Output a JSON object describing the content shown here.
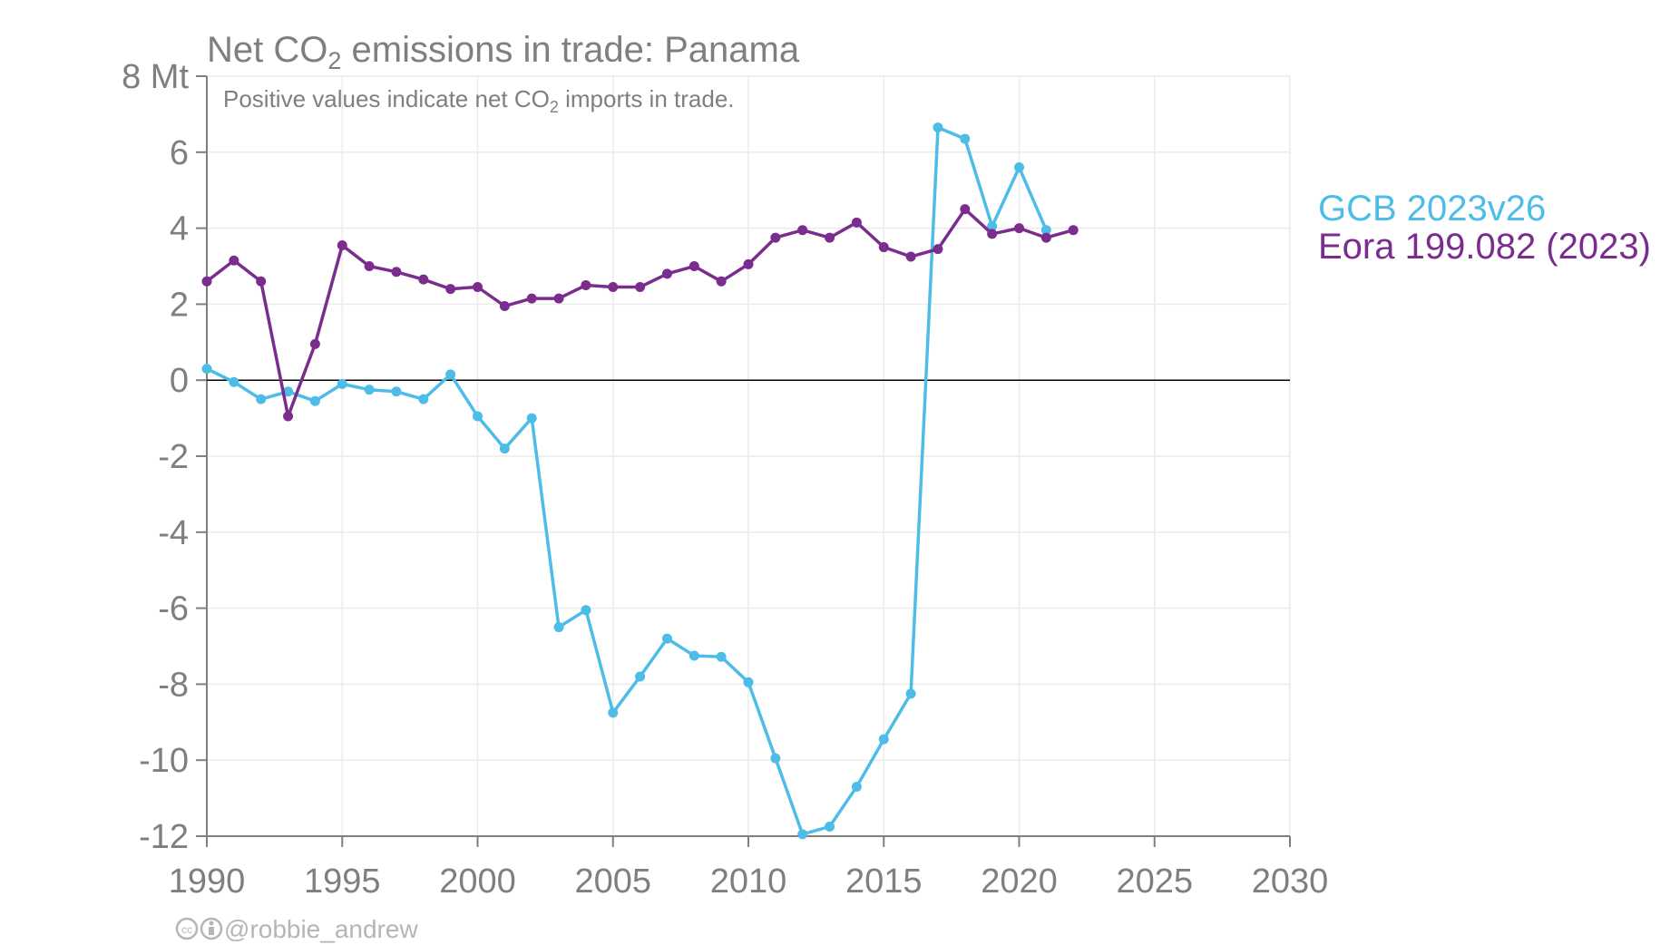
{
  "title_pre": "Net CO",
  "title_sub": "2",
  "title_post": " emissions in trade: Panama",
  "subtitle_pre": "Positive values indicate net CO",
  "subtitle_sub": "2",
  "subtitle_post": " imports in trade.",
  "credit": "@robbie_andrew",
  "chart_data": {
    "type": "line",
    "xlim": [
      1990,
      2030
    ],
    "ylim": [
      -12,
      8
    ],
    "x_ticks": [
      1990,
      1995,
      2000,
      2005,
      2010,
      2015,
      2020,
      2025,
      2030
    ],
    "x_tick_labels": [
      "1990",
      "1995",
      "2000",
      "2005",
      "2010",
      "2015",
      "2020",
      "2025",
      "2030"
    ],
    "y_ticks": [
      8,
      6,
      4,
      2,
      0,
      -2,
      -4,
      -6,
      -8,
      -10,
      -12
    ],
    "y_tick_labels": [
      "8 Mt",
      "6",
      "4",
      "2",
      "0",
      "-2",
      "-4",
      "-6",
      "-8",
      "-10",
      "-12"
    ],
    "grid": true,
    "legend_placement": "right",
    "series": [
      {
        "name": "GCB 2023v26",
        "color": "#4dbde8",
        "x": [
          1990,
          1991,
          1992,
          1993,
          1994,
          1995,
          1996,
          1997,
          1998,
          1999,
          2000,
          2001,
          2002,
          2003,
          2004,
          2005,
          2006,
          2007,
          2008,
          2009,
          2010,
          2011,
          2012,
          2013,
          2014,
          2015,
          2016,
          2017,
          2018,
          2019,
          2020,
          2021
        ],
        "values": [
          0.3,
          -0.05,
          -0.5,
          -0.3,
          -0.55,
          -0.1,
          -0.25,
          -0.3,
          -0.5,
          0.15,
          -0.95,
          -1.8,
          -1.0,
          -6.5,
          -6.05,
          -8.75,
          -7.8,
          -6.8,
          -7.25,
          -7.28,
          -7.95,
          -9.95,
          -11.95,
          -11.75,
          -10.7,
          -9.45,
          -8.25,
          6.65,
          6.35,
          4.05,
          5.6,
          3.95
        ]
      },
      {
        "name": "Eora 199.082 (2023)",
        "color": "#7b2d8e",
        "x": [
          1990,
          1991,
          1992,
          1993,
          1994,
          1995,
          1996,
          1997,
          1998,
          1999,
          2000,
          2001,
          2002,
          2003,
          2004,
          2005,
          2006,
          2007,
          2008,
          2009,
          2010,
          2011,
          2012,
          2013,
          2014,
          2015,
          2016,
          2017,
          2018,
          2019,
          2020,
          2021,
          2022
        ],
        "values": [
          2.6,
          3.15,
          2.6,
          -0.95,
          0.95,
          3.55,
          3.0,
          2.85,
          2.65,
          2.4,
          2.45,
          1.95,
          2.15,
          2.15,
          2.5,
          2.45,
          2.45,
          2.8,
          3.0,
          2.6,
          3.05,
          3.75,
          3.95,
          3.75,
          4.15,
          3.5,
          3.25,
          3.45,
          4.5,
          3.85,
          4.0,
          3.75,
          3.95
        ]
      }
    ]
  }
}
